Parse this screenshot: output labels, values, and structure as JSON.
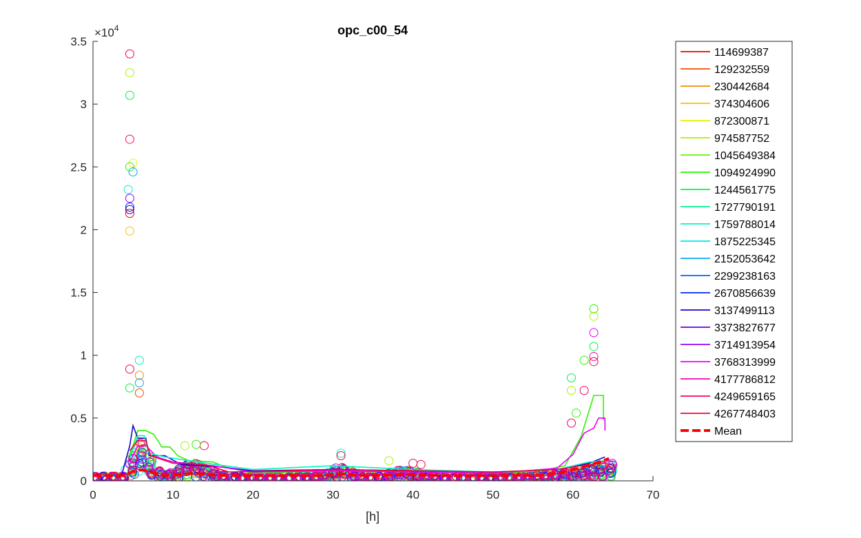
{
  "chart_data": {
    "type": "scatter",
    "title": "opc_c00_54",
    "xlabel": "[h]",
    "ylabel": "",
    "xlim": [
      0,
      70
    ],
    "ylim": [
      0,
      35000
    ],
    "x_ticks": [
      "0",
      "10",
      "20",
      "30",
      "40",
      "50",
      "60",
      "70"
    ],
    "y_ticks": [
      "0",
      "0.5",
      "1",
      "1.5",
      "2",
      "2.5",
      "3",
      "3.5"
    ],
    "y_tick_values": [
      0,
      5000,
      10000,
      15000,
      20000,
      25000,
      30000,
      35000
    ],
    "y_exponent_base": "×10",
    "y_exponent_power": "4",
    "legend_position": "outside-right",
    "series": [
      {
        "name": "114699387",
        "color": "#e60000"
      },
      {
        "name": "129232559",
        "color": "#f24d00"
      },
      {
        "name": "230442684",
        "color": "#f28a00"
      },
      {
        "name": "374304606",
        "color": "#f2c200"
      },
      {
        "name": "872300871",
        "color": "#e6f200"
      },
      {
        "name": "974587752",
        "color": "#a8f200"
      },
      {
        "name": "1045649384",
        "color": "#6af200"
      },
      {
        "name": "1094924990",
        "color": "#2bf200"
      },
      {
        "name": "1244561775",
        "color": "#00f24d"
      },
      {
        "name": "1727790191",
        "color": "#00f28a"
      },
      {
        "name": "1759788014",
        "color": "#00f2c8"
      },
      {
        "name": "1875225345",
        "color": "#00e6f2"
      },
      {
        "name": "2152053642",
        "color": "#00a8f2"
      },
      {
        "name": "2299238163",
        "color": "#0066f2"
      },
      {
        "name": "2670856639",
        "color": "#0026f2"
      },
      {
        "name": "3137499113",
        "color": "#1a00c8"
      },
      {
        "name": "3373827677",
        "color": "#5a00f2"
      },
      {
        "name": "3714913954",
        "color": "#9a00f2"
      },
      {
        "name": "3768313999",
        "color": "#e600f2"
      },
      {
        "name": "4177786812",
        "color": "#f200b0"
      },
      {
        "name": "4249659165",
        "color": "#f20066"
      },
      {
        "name": "4267748403",
        "color": "#f20040"
      }
    ],
    "mean": {
      "name": "Mean",
      "color": "#ff0000",
      "style": "dashed"
    },
    "highlight_points": [
      {
        "x": 4.6,
        "y": 34000,
        "series": "4267748403"
      },
      {
        "x": 4.6,
        "y": 32500,
        "series": "974587752"
      },
      {
        "x": 4.6,
        "y": 30700,
        "series": "1244561775"
      },
      {
        "x": 4.6,
        "y": 27200,
        "series": "4249659165"
      },
      {
        "x": 5.0,
        "y": 25300,
        "series": "872300871"
      },
      {
        "x": 4.6,
        "y": 25000,
        "series": "1094924990"
      },
      {
        "x": 5.0,
        "y": 24600,
        "series": "2152053642"
      },
      {
        "x": 4.4,
        "y": 23200,
        "series": "1759788014"
      },
      {
        "x": 4.6,
        "y": 22500,
        "series": "3714913954"
      },
      {
        "x": 4.6,
        "y": 21800,
        "series": "2670856639"
      },
      {
        "x": 4.6,
        "y": 21600,
        "series": "3137499113"
      },
      {
        "x": 4.6,
        "y": 21300,
        "series": "114699387"
      },
      {
        "x": 4.6,
        "y": 19900,
        "series": "374304606"
      },
      {
        "x": 5.8,
        "y": 9600,
        "series": "1759788014"
      },
      {
        "x": 4.6,
        "y": 8900,
        "series": "4249659165"
      },
      {
        "x": 5.8,
        "y": 8400,
        "series": "230442684"
      },
      {
        "x": 5.8,
        "y": 7800,
        "series": "2152053642"
      },
      {
        "x": 4.6,
        "y": 7400,
        "series": "1244561775"
      },
      {
        "x": 5.8,
        "y": 7000,
        "series": "129232559"
      },
      {
        "x": 62.6,
        "y": 13700,
        "series": "1094924990"
      },
      {
        "x": 62.6,
        "y": 13100,
        "series": "974587752"
      },
      {
        "x": 62.6,
        "y": 11800,
        "series": "3768313999"
      },
      {
        "x": 62.6,
        "y": 10700,
        "series": "1244561775"
      },
      {
        "x": 62.6,
        "y": 9900,
        "series": "4177786812"
      },
      {
        "x": 61.4,
        "y": 9600,
        "series": "1094924990"
      },
      {
        "x": 62.6,
        "y": 9500,
        "series": "4267748403"
      },
      {
        "x": 59.8,
        "y": 8200,
        "series": "1244561775"
      },
      {
        "x": 61.4,
        "y": 7200,
        "series": "4249659165"
      },
      {
        "x": 59.8,
        "y": 7200,
        "series": "974587752"
      },
      {
        "x": 60.4,
        "y": 5400,
        "series": "1094924990"
      },
      {
        "x": 59.8,
        "y": 4600,
        "series": "4249659165"
      },
      {
        "x": 13.9,
        "y": 2800,
        "series": "4267748403"
      },
      {
        "x": 12.9,
        "y": 2900,
        "series": "1094924990"
      },
      {
        "x": 11.5,
        "y": 2800,
        "series": "974587752"
      },
      {
        "x": 31.0,
        "y": 2200,
        "series": "1759788014"
      },
      {
        "x": 31.0,
        "y": 2000,
        "series": "4267748403"
      },
      {
        "x": 37.0,
        "y": 1600,
        "series": "974587752"
      },
      {
        "x": 40.0,
        "y": 1400,
        "series": "4249659165"
      },
      {
        "x": 41.0,
        "y": 1300,
        "series": "4267748403"
      }
    ],
    "series_lines": [
      {
        "series": "1094924990",
        "points": [
          [
            4.6,
            2000
          ],
          [
            5.6,
            4000
          ],
          [
            6.6,
            4000
          ],
          [
            7.6,
            3700
          ],
          [
            8.6,
            2700
          ],
          [
            9.6,
            2700
          ],
          [
            10.6,
            2000
          ],
          [
            12.0,
            1600
          ],
          [
            15.0,
            1500
          ],
          [
            16.5,
            1100
          ],
          [
            20,
            600
          ],
          [
            30,
            800
          ],
          [
            40,
            700
          ],
          [
            50,
            600
          ],
          [
            56,
            800
          ],
          [
            59,
            1200
          ],
          [
            61,
            3500
          ],
          [
            62.6,
            6800
          ],
          [
            63.8,
            6800
          ],
          [
            63.8,
            4800
          ]
        ]
      },
      {
        "series": "3137499113",
        "points": [
          [
            3.6,
            500
          ],
          [
            4.6,
            2800
          ],
          [
            5.0,
            4400
          ],
          [
            5.6,
            3400
          ],
          [
            6.6,
            3400
          ],
          [
            7.0,
            2000
          ],
          [
            9.0,
            2000
          ],
          [
            11.0,
            1300
          ],
          [
            16.0,
            1100
          ],
          [
            20.0,
            800
          ],
          [
            30.0,
            900
          ],
          [
            40.0,
            800
          ],
          [
            50.0,
            700
          ],
          [
            58.0,
            900
          ],
          [
            62.0,
            1400
          ],
          [
            64.0,
            1900
          ]
        ]
      },
      {
        "series": "3768313999",
        "points": [
          [
            4.6,
            1500
          ],
          [
            5.6,
            2800
          ],
          [
            6.6,
            2800
          ],
          [
            8.0,
            1900
          ],
          [
            10.0,
            1500
          ],
          [
            15.0,
            1200
          ],
          [
            20.0,
            700
          ],
          [
            30.0,
            800
          ],
          [
            40.0,
            700
          ],
          [
            50.0,
            600
          ],
          [
            58.0,
            1000
          ],
          [
            60.0,
            2100
          ],
          [
            61.4,
            3800
          ],
          [
            62.6,
            4200
          ],
          [
            63.2,
            5000
          ],
          [
            64.0,
            5000
          ],
          [
            64.0,
            4000
          ]
        ]
      },
      {
        "series": "1759788014",
        "points": [
          [
            4.6,
            1800
          ],
          [
            5.6,
            3600
          ],
          [
            6.4,
            3600
          ],
          [
            7.0,
            2200
          ],
          [
            9.0,
            1900
          ],
          [
            13.0,
            1500
          ],
          [
            20.0,
            900
          ],
          [
            30.0,
            1200
          ],
          [
            40.0,
            900
          ],
          [
            50.0,
            700
          ],
          [
            58.0,
            900
          ],
          [
            62.0,
            1500
          ],
          [
            64.0,
            1600
          ]
        ]
      },
      {
        "series": "4267748403",
        "points": [
          [
            4.6,
            2400
          ],
          [
            5.6,
            3200
          ],
          [
            6.6,
            3200
          ],
          [
            7.2,
            2000
          ],
          [
            10.0,
            1400
          ],
          [
            14.0,
            1300
          ],
          [
            17.0,
            700
          ],
          [
            30.0,
            900
          ],
          [
            40.0,
            800
          ],
          [
            50.0,
            700
          ],
          [
            58.0,
            900
          ],
          [
            62.0,
            1300
          ],
          [
            64.0,
            1400
          ]
        ]
      }
    ]
  }
}
